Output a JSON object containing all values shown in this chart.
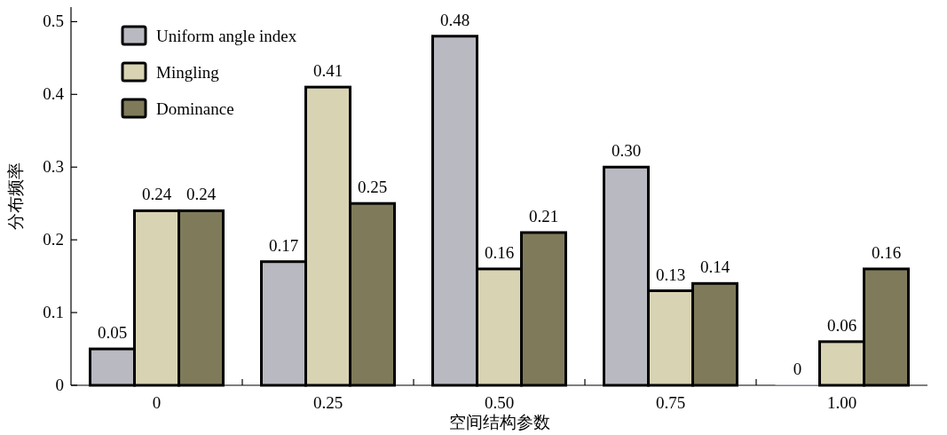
{
  "chart_data": {
    "type": "bar",
    "xlabel": "空间结构参数",
    "ylabel": "分布频率",
    "categories": [
      "0",
      "0.25",
      "0.50",
      "0.75",
      "1.00"
    ],
    "series": [
      {
        "name": "Uniform angle index",
        "color": "#b9b9c2",
        "values": [
          0.05,
          0.17,
          0.48,
          0.3,
          0
        ],
        "value_labels": [
          "0.05",
          "0.17",
          "0.48",
          "0.30",
          "0"
        ]
      },
      {
        "name": "Mingling",
        "color": "#d8d3b3",
        "values": [
          0.24,
          0.41,
          0.16,
          0.13,
          0.06
        ]
      },
      {
        "name": "Dominance",
        "color": "#7f7b5a",
        "values": [
          0.24,
          0.25,
          0.21,
          0.14,
          0.16
        ]
      }
    ],
    "ylim": [
      0,
      0.52
    ],
    "yticks": [
      0,
      0.1,
      0.2,
      0.3,
      0.4,
      0.5
    ],
    "legend": "top left",
    "data_labels": true
  }
}
